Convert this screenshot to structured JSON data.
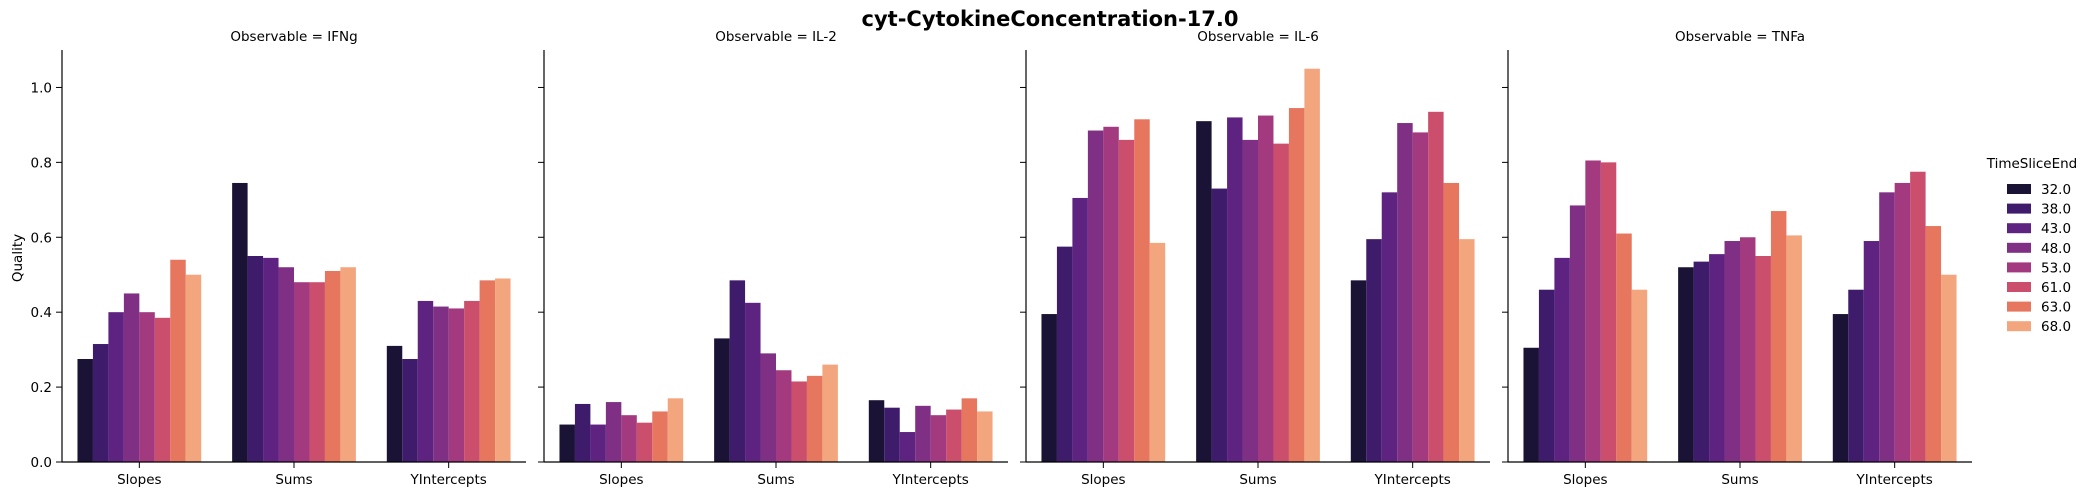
{
  "chart_data": {
    "type": "bar",
    "title": "cyt-CytokineConcentration-17.0",
    "ylabel": "Quality",
    "xlabel": "",
    "ylim": [
      0,
      1.1
    ],
    "yticks": [
      "0.0",
      "0.2",
      "0.4",
      "0.6",
      "0.8",
      "1.0"
    ],
    "categories": [
      "Slopes",
      "Sums",
      "YIntercepts"
    ],
    "legend": {
      "title": "TimeSliceEnd",
      "placement": "right",
      "entries": [
        "32.0",
        "38.0",
        "43.0",
        "48.0",
        "53.0",
        "61.0",
        "63.0",
        "68.0"
      ],
      "colors": [
        "#1b1335",
        "#3e1b6b",
        "#5e2381",
        "#7f2f84",
        "#a3397e",
        "#cb4f6c",
        "#e7765f",
        "#f3a57e"
      ]
    },
    "facets": [
      {
        "title": "Observable = IFNg",
        "series": [
          {
            "name": "32.0",
            "values": [
              0.275,
              0.745,
              0.31
            ]
          },
          {
            "name": "38.0",
            "values": [
              0.315,
              0.55,
              0.275
            ]
          },
          {
            "name": "43.0",
            "values": [
              0.4,
              0.545,
              0.43
            ]
          },
          {
            "name": "48.0",
            "values": [
              0.45,
              0.52,
              0.415
            ]
          },
          {
            "name": "53.0",
            "values": [
              0.4,
              0.48,
              0.41
            ]
          },
          {
            "name": "61.0",
            "values": [
              0.385,
              0.48,
              0.43
            ]
          },
          {
            "name": "63.0",
            "values": [
              0.54,
              0.51,
              0.485
            ]
          },
          {
            "name": "68.0",
            "values": [
              0.5,
              0.52,
              0.49
            ]
          }
        ]
      },
      {
        "title": "Observable = IL-2",
        "series": [
          {
            "name": "32.0",
            "values": [
              0.1,
              0.33,
              0.165
            ]
          },
          {
            "name": "38.0",
            "values": [
              0.155,
              0.485,
              0.145
            ]
          },
          {
            "name": "43.0",
            "values": [
              0.1,
              0.425,
              0.08
            ]
          },
          {
            "name": "48.0",
            "values": [
              0.16,
              0.29,
              0.15
            ]
          },
          {
            "name": "53.0",
            "values": [
              0.125,
              0.245,
              0.125
            ]
          },
          {
            "name": "61.0",
            "values": [
              0.105,
              0.215,
              0.14
            ]
          },
          {
            "name": "63.0",
            "values": [
              0.135,
              0.23,
              0.17
            ]
          },
          {
            "name": "68.0",
            "values": [
              0.17,
              0.26,
              0.135
            ]
          }
        ]
      },
      {
        "title": "Observable = IL-6",
        "series": [
          {
            "name": "32.0",
            "values": [
              0.395,
              0.91,
              0.485
            ]
          },
          {
            "name": "38.0",
            "values": [
              0.575,
              0.73,
              0.595
            ]
          },
          {
            "name": "43.0",
            "values": [
              0.705,
              0.92,
              0.72
            ]
          },
          {
            "name": "48.0",
            "values": [
              0.885,
              0.86,
              0.905
            ]
          },
          {
            "name": "53.0",
            "values": [
              0.895,
              0.925,
              0.88
            ]
          },
          {
            "name": "61.0",
            "values": [
              0.86,
              0.85,
              0.935
            ]
          },
          {
            "name": "63.0",
            "values": [
              0.915,
              0.945,
              0.745
            ]
          },
          {
            "name": "68.0",
            "values": [
              0.585,
              1.05,
              0.595
            ]
          }
        ]
      },
      {
        "title": "Observable = TNFa",
        "series": [
          {
            "name": "32.0",
            "values": [
              0.305,
              0.52,
              0.395
            ]
          },
          {
            "name": "38.0",
            "values": [
              0.46,
              0.535,
              0.46
            ]
          },
          {
            "name": "43.0",
            "values": [
              0.545,
              0.555,
              0.59
            ]
          },
          {
            "name": "48.0",
            "values": [
              0.685,
              0.59,
              0.72
            ]
          },
          {
            "name": "53.0",
            "values": [
              0.805,
              0.6,
              0.745
            ]
          },
          {
            "name": "61.0",
            "values": [
              0.8,
              0.55,
              0.775
            ]
          },
          {
            "name": "63.0",
            "values": [
              0.61,
              0.67,
              0.63
            ]
          },
          {
            "name": "68.0",
            "values": [
              0.46,
              0.605,
              0.5
            ]
          }
        ]
      }
    ]
  }
}
